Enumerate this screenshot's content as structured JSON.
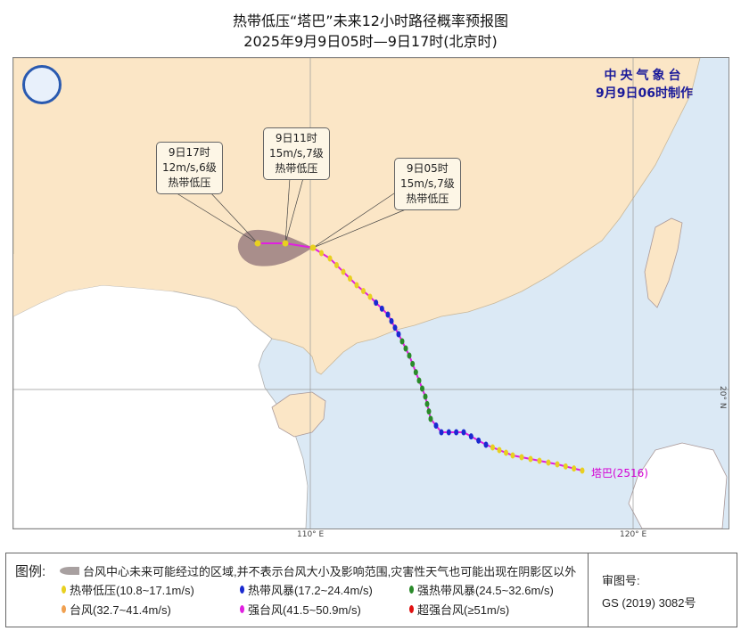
{
  "header": {
    "title": "热带低压“塔巴”未来12小时路径概率预报图",
    "subtitle": "2025年9月9日05时—9日17时(北京时)"
  },
  "agency": {
    "name": "中央气象台",
    "issued": "9月9日06时制作"
  },
  "map": {
    "colors": {
      "land_china": "#fbe6c6",
      "land_foreign": "#ffffff",
      "sea": "#dbe9f5",
      "track": "#e020e0",
      "cone": "#9a7e80"
    },
    "grid_labels": {
      "lon110": "110° E",
      "lon120": "120° E",
      "lat20": "20° N"
    },
    "storm_label": "塔巴(2516)",
    "callouts": [
      {
        "time": "9日17时",
        "wind": "12m/s,6级",
        "category": "热带低压"
      },
      {
        "time": "9日11时",
        "wind": "15m/s,7级",
        "category": "热带低压"
      },
      {
        "time": "9日05时",
        "wind": "15m/s,7级",
        "category": "热带低压"
      }
    ]
  },
  "legend": {
    "label": "图例:",
    "cone_text": "台风中心未来可能经过的区域,并不表示台风大小及影响范围,灾害性天气也可能出现在阴影区以外",
    "items": [
      {
        "label": "热带低压(10.8~17.1m/s)",
        "color": "#e8d020"
      },
      {
        "label": "热带风暴(17.2~24.4m/s)",
        "color": "#1a2ad0"
      },
      {
        "label": "强热带风暴(24.5~32.6m/s)",
        "color": "#2a8a2a"
      },
      {
        "label": "台风(32.7~41.4m/s)",
        "color": "#f0a050"
      },
      {
        "label": "强台风(41.5~50.9m/s)",
        "color": "#e020e0"
      },
      {
        "label": "超强台风(≥51m/s)",
        "color": "#e01010"
      }
    ],
    "review_label": "审图号:",
    "review_number": "GS (2019) 3082号"
  }
}
